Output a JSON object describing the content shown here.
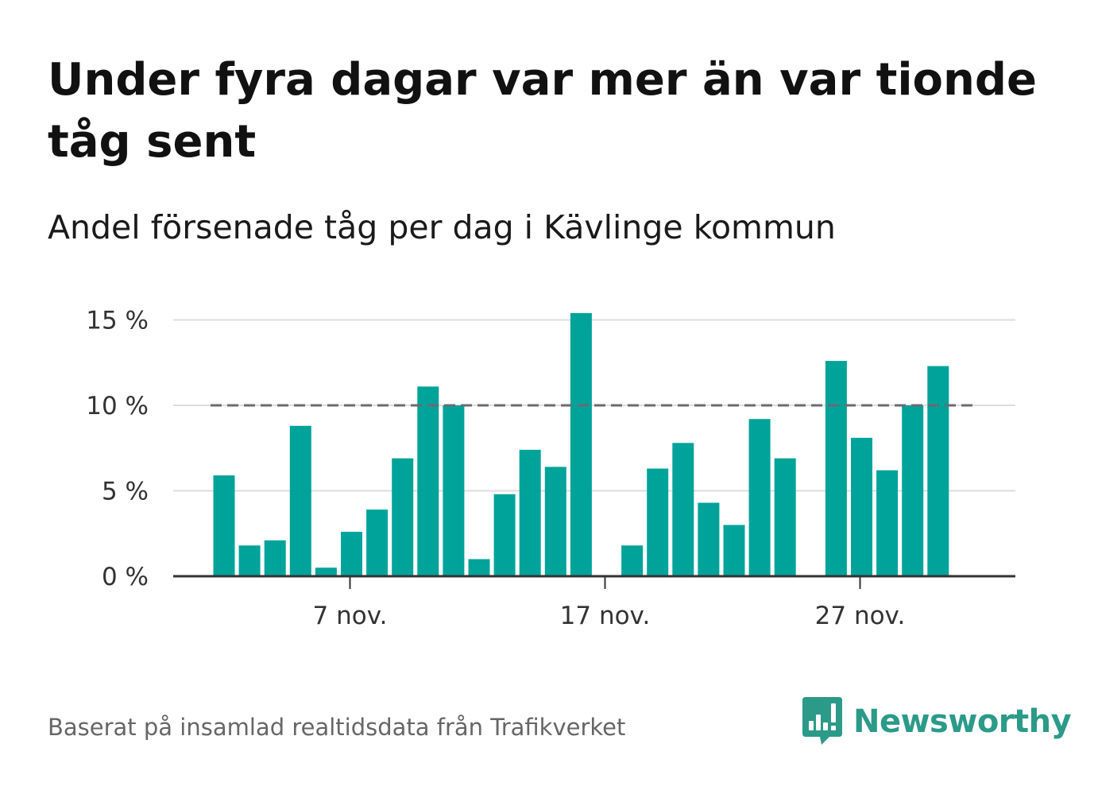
{
  "title": "Under fyra dagar var mer än var tionde tåg sent",
  "subtitle": "Andel försenade tåg per dag i Kävlinge kommun",
  "source": "Baserat på insamlad realtidsdata från Trafikverket",
  "brand": {
    "name": "Newsworthy",
    "icon": "newsworthy-logo-icon",
    "color": "#2b9a88"
  },
  "colors": {
    "bar": "#00a39a",
    "threshold": "#6b6b73",
    "grid": "#dddddd",
    "axis": "#333333"
  },
  "chart_data": {
    "type": "bar",
    "title": "Andel försenade tåg per dag i Kävlinge kommun",
    "xlabel": "",
    "ylabel": "",
    "x": [
      "2023-11-02",
      "2023-11-03",
      "2023-11-04",
      "2023-11-05",
      "2023-11-06",
      "2023-11-07",
      "2023-11-08",
      "2023-11-09",
      "2023-11-10",
      "2023-11-11",
      "2023-11-12",
      "2023-11-13",
      "2023-11-14",
      "2023-11-15",
      "2023-11-16",
      "2023-11-17",
      "2023-11-18",
      "2023-11-19",
      "2023-11-20",
      "2023-11-21",
      "2023-11-22",
      "2023-11-23",
      "2023-11-24",
      "2023-11-25",
      "2023-11-26",
      "2023-11-27",
      "2023-11-28",
      "2023-11-29",
      "2023-11-30",
      "2023-12-01"
    ],
    "x_tick_labels": [
      "7 nov.",
      "17 nov.",
      "27 nov."
    ],
    "x_tick_dates": [
      "2023-11-07",
      "2023-11-17",
      "2023-11-27"
    ],
    "series": [
      {
        "values": [
          5.9,
          1.8,
          2.1,
          8.8,
          0.5,
          2.6,
          3.9,
          6.9,
          11.1,
          10.0,
          1.0,
          4.8,
          7.4,
          6.4,
          15.4,
          null,
          1.8,
          6.3,
          7.8,
          4.3,
          3.0,
          9.2,
          6.9,
          null,
          12.6,
          8.1,
          6.2,
          10.0,
          12.3,
          null
        ]
      }
    ],
    "reference_line": {
      "value": 10,
      "style": "dashed"
    },
    "y_ticks": [
      0,
      5,
      10,
      15
    ],
    "y_tick_labels": [
      "0 %",
      "5 %",
      "10 %",
      "15 %"
    ],
    "ylim": [
      0,
      15.4
    ],
    "grid": true,
    "legend": "none"
  }
}
